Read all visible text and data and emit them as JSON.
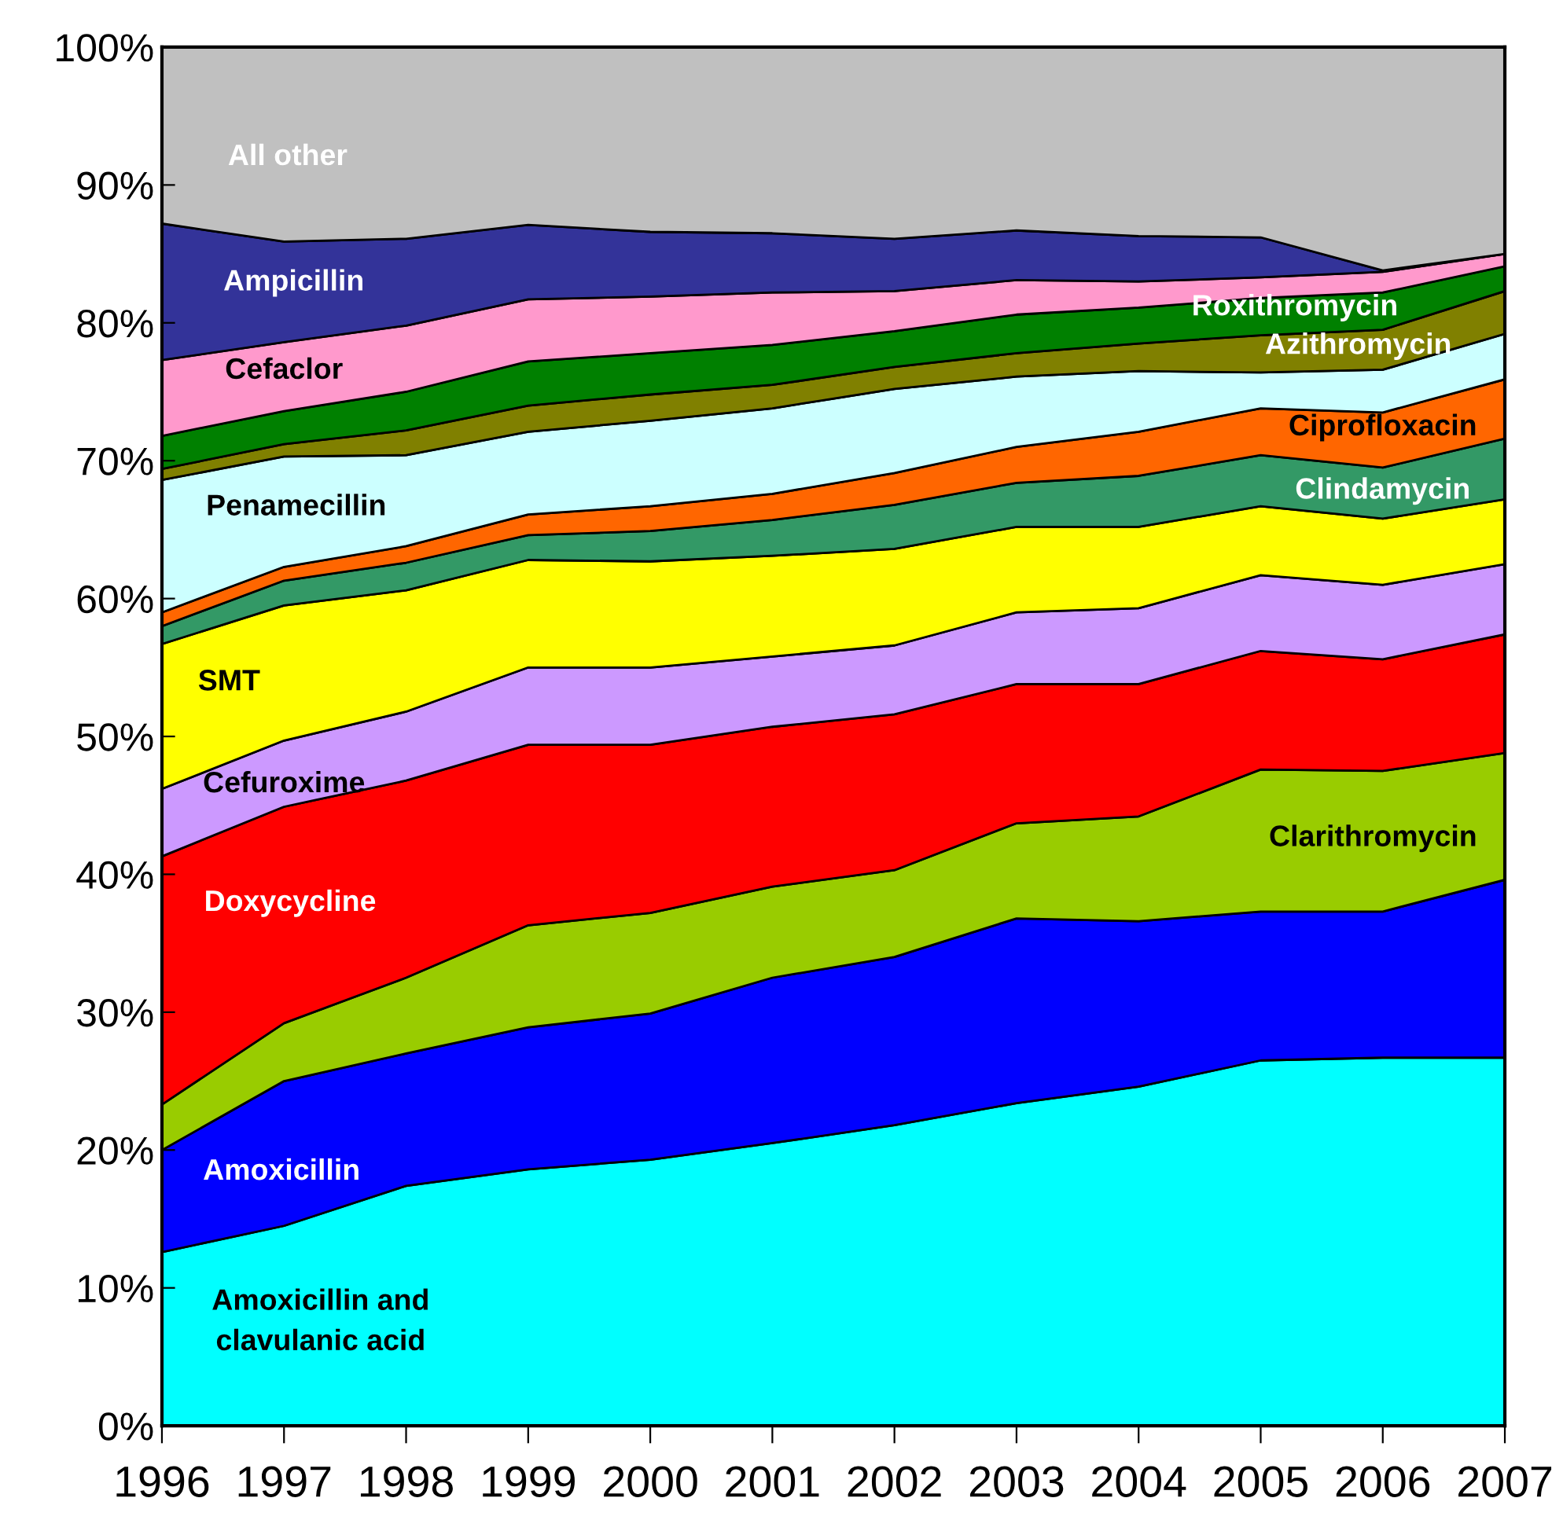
{
  "chart_data": {
    "type": "area",
    "stacked": true,
    "x": [
      1996,
      1997,
      1998,
      1999,
      2000,
      2001,
      2002,
      2003,
      2004,
      2005,
      2006,
      2007
    ],
    "xlim": [
      1996,
      2007
    ],
    "xticks": [
      1996,
      1997,
      1998,
      1999,
      2000,
      2001,
      2002,
      2003,
      2004,
      2005,
      2006,
      2007
    ],
    "ylim": [
      0,
      100
    ],
    "yticks": [
      {
        "value": 0,
        "label": "0%"
      },
      {
        "value": 10,
        "label": "10%"
      },
      {
        "value": 20,
        "label": "20%"
      },
      {
        "value": 30,
        "label": "30%"
      },
      {
        "value": 40,
        "label": "40%"
      },
      {
        "value": 50,
        "label": "50%"
      },
      {
        "value": 60,
        "label": "60%"
      },
      {
        "value": 70,
        "label": "70%"
      },
      {
        "value": 80,
        "label": "80%"
      },
      {
        "value": 90,
        "label": "90%"
      },
      {
        "value": 100,
        "label": "100%"
      }
    ],
    "grid": false,
    "series": [
      {
        "name": "Amoxicillin and\nclavulanic acid",
        "color": "#00ffff",
        "values": [
          12.6,
          14.5,
          17.4,
          18.6,
          19.3,
          20.5,
          21.8,
          23.4,
          24.6,
          26.5,
          26.7,
          26.7
        ]
      },
      {
        "name": "Amoxicillin",
        "color": "#0000ff",
        "values": [
          7.4,
          10.5,
          9.6,
          10.3,
          10.6,
          12.0,
          12.2,
          13.4,
          12.0,
          10.8,
          10.6,
          12.9
        ]
      },
      {
        "name": "Clarithromycin",
        "color": "#99cc00",
        "values": [
          3.3,
          4.2,
          5.5,
          7.4,
          7.3,
          6.6,
          6.3,
          6.9,
          7.6,
          10.3,
          10.2,
          9.2
        ]
      },
      {
        "name": "Doxycycline",
        "color": "#ff0000",
        "values": [
          18.0,
          15.7,
          14.3,
          13.1,
          12.2,
          11.6,
          11.3,
          10.1,
          9.6,
          8.6,
          8.1,
          8.6
        ]
      },
      {
        "name": "Cefuroxime",
        "color": "#cc99ff",
        "values": [
          4.9,
          4.8,
          5.0,
          5.6,
          5.6,
          5.1,
          5.0,
          5.2,
          5.5,
          5.5,
          5.4,
          5.1
        ]
      },
      {
        "name": "SMT",
        "color": "#ffff00",
        "values": [
          10.5,
          9.8,
          8.8,
          7.8,
          7.7,
          7.3,
          7.0,
          6.2,
          5.9,
          5.0,
          4.8,
          4.7
        ]
      },
      {
        "name": "Clindamycin",
        "color": "#339966",
        "values": [
          1.3,
          1.8,
          2.0,
          1.8,
          2.2,
          2.6,
          3.2,
          3.2,
          3.7,
          3.7,
          3.7,
          4.4
        ]
      },
      {
        "name": "Ciprofloxacin",
        "color": "#ff6600",
        "values": [
          1.0,
          1.0,
          1.2,
          1.5,
          1.8,
          1.9,
          2.3,
          2.6,
          3.2,
          3.4,
          4.0,
          4.3
        ]
      },
      {
        "name": "Penamecillin",
        "color": "#ccffff",
        "values": [
          9.6,
          8.0,
          6.6,
          6.0,
          6.2,
          6.2,
          6.1,
          5.1,
          4.4,
          2.6,
          3.1,
          3.3
        ]
      },
      {
        "name": "Azithromycin",
        "color": "#808000",
        "values": [
          0.8,
          0.9,
          1.8,
          1.9,
          1.9,
          1.7,
          1.6,
          1.7,
          2.0,
          2.7,
          2.9,
          3.1
        ]
      },
      {
        "name": "Roxithromycin",
        "color": "#008000",
        "values": [
          2.4,
          2.4,
          2.8,
          3.2,
          3.0,
          2.9,
          2.6,
          2.8,
          2.6,
          2.7,
          2.7,
          1.8
        ]
      },
      {
        "name": "Cefaclor",
        "color": "#ff99cc",
        "values": [
          5.5,
          5.0,
          4.8,
          4.5,
          4.1,
          3.8,
          2.9,
          2.5,
          1.9,
          1.5,
          1.5,
          0.9
        ]
      },
      {
        "name": "Ampicillin",
        "color": "#333399",
        "values": [
          9.9,
          7.3,
          6.3,
          5.4,
          4.7,
          4.3,
          3.8,
          3.6,
          3.3,
          2.9,
          0.1,
          0.0
        ]
      },
      {
        "name": "All other",
        "color": "#c0c0c0",
        "values": [
          12.8,
          14.1,
          13.9,
          12.9,
          13.4,
          13.5,
          13.9,
          13.3,
          13.7,
          13.8,
          16.2,
          15.0
        ]
      }
    ]
  }
}
